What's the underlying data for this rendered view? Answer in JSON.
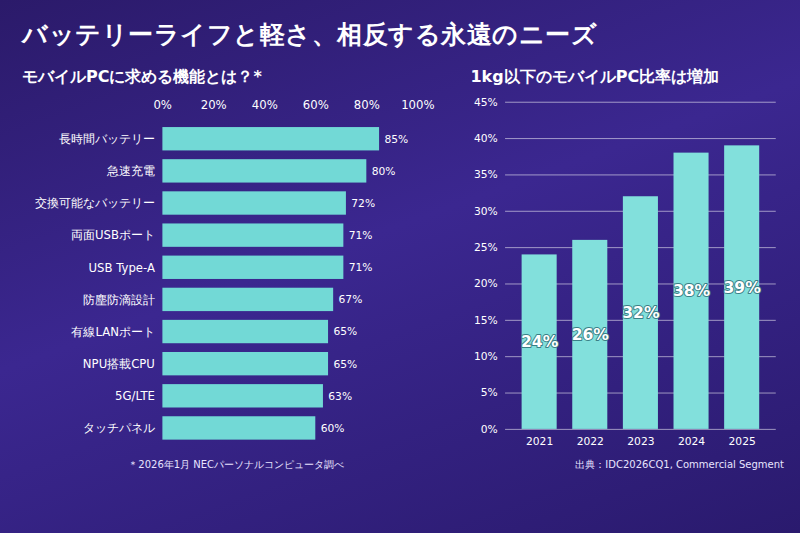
{
  "title": "バッテリーライフと軽さ、相反する永遠のニーズ",
  "chart_data": [
    {
      "type": "bar",
      "orientation": "horizontal",
      "title": "モバイルPCに求める機能とは？*",
      "annotations": [
        "＊2026年1月 NECパーソナルコンピュータ調べ"
      ],
      "categories": [
        "長時間バッテリー",
        "急速充電",
        "交換可能なバッテリー",
        "両面USBポート",
        "USB Type-A",
        "防塵防滴設計",
        "有線LANポート",
        "NPU搭載CPU",
        "5G/LTE",
        "タッチパネル"
      ],
      "values": [
        85,
        80,
        72,
        71,
        71,
        67,
        65,
        65,
        63,
        60
      ],
      "value_labels": [
        "85%",
        "80%",
        "72%",
        "71%",
        "71%",
        "67%",
        "65%",
        "65%",
        "63%",
        "60%"
      ],
      "color": "#72d9d6",
      "xlim": [
        0,
        100
      ],
      "xticks": [
        {
          "value": 0,
          "label": "0%"
        },
        {
          "value": 20,
          "label": "20%"
        },
        {
          "value": 40,
          "label": "40%"
        },
        {
          "value": 60,
          "label": "60%"
        },
        {
          "value": 80,
          "label": "80%"
        },
        {
          "value": 100,
          "label": "100%"
        }
      ],
      "grid": false,
      "data_labels": true
    },
    {
      "type": "bar",
      "title": "1kg以下のモバイルPC比率は増加",
      "annotations": [
        "出典：IDC2026CQ1, Commercial Segment"
      ],
      "categories": [
        "2021",
        "2022",
        "2023",
        "2024",
        "2025"
      ],
      "values": [
        24,
        26,
        32,
        38,
        39
      ],
      "value_labels": [
        "24%",
        "26%",
        "32%",
        "38%",
        "39%"
      ],
      "color": "#82e0dc",
      "ylim": [
        0,
        45
      ],
      "yticks": [
        {
          "value": 0,
          "label": "0%"
        },
        {
          "value": 5,
          "label": "5%"
        },
        {
          "value": 10,
          "label": "10%"
        },
        {
          "value": 15,
          "label": "15%"
        },
        {
          "value": 20,
          "label": "20%"
        },
        {
          "value": 25,
          "label": "25%"
        },
        {
          "value": 30,
          "label": "30%"
        },
        {
          "value": 35,
          "label": "35%"
        },
        {
          "value": 40,
          "label": "40%"
        },
        {
          "value": 45,
          "label": "45%"
        }
      ],
      "grid": true,
      "data_labels": true
    }
  ]
}
